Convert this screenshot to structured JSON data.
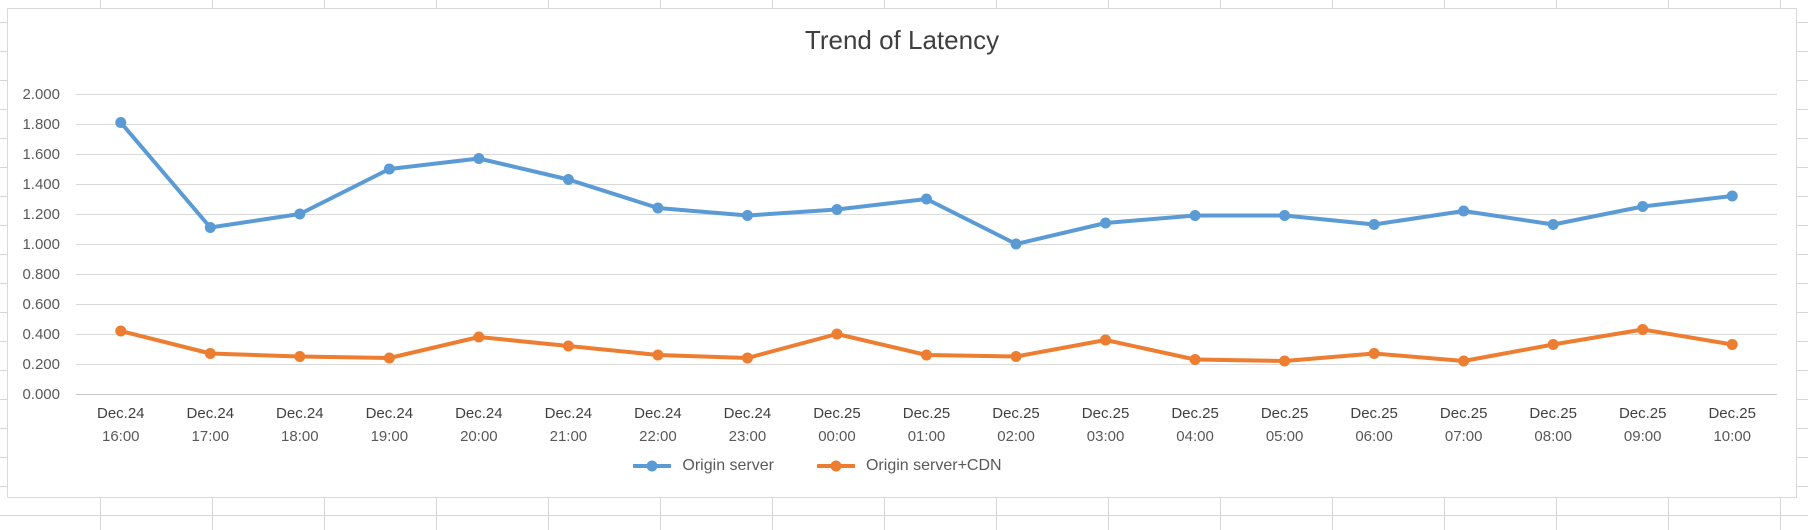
{
  "chart_data": {
    "type": "line",
    "title": "Trend of Latency",
    "categories": [
      "Dec.24 16:00",
      "Dec.24 17:00",
      "Dec.24 18:00",
      "Dec.24 19:00",
      "Dec.24 20:00",
      "Dec.24 21:00",
      "Dec.24 22:00",
      "Dec.24 23:00",
      "Dec.25 00:00",
      "Dec.25 01:00",
      "Dec.25 02:00",
      "Dec.25 03:00",
      "Dec.25 04:00",
      "Dec.25 05:00",
      "Dec.25 06:00",
      "Dec.25 07:00",
      "Dec.25 08:00",
      "Dec.25 09:00",
      "Dec.25 10:00"
    ],
    "series": [
      {
        "name": "Origin server",
        "color": "#5B9BD5",
        "values": [
          1.81,
          1.11,
          1.2,
          1.5,
          1.57,
          1.43,
          1.24,
          1.19,
          1.23,
          1.3,
          1.0,
          1.14,
          1.19,
          1.19,
          1.13,
          1.22,
          1.13,
          1.25,
          1.32
        ]
      },
      {
        "name": "Origin server+CDN",
        "color": "#ED7D31",
        "values": [
          0.42,
          0.27,
          0.25,
          0.24,
          0.38,
          0.32,
          0.26,
          0.24,
          0.4,
          0.26,
          0.25,
          0.36,
          0.23,
          0.22,
          0.27,
          0.22,
          0.33,
          0.43,
          0.33
        ]
      }
    ],
    "ylim": [
      0,
      2
    ],
    "ytick_step": 0.2,
    "ytick_decimals": 3,
    "grid": "horizontal",
    "legend_position": "bottom"
  },
  "colors": {
    "gridline": "#D9D9D9",
    "axis_line": "#C6C6C6",
    "title_text": "#3F3F3F",
    "tick_text": "#595959",
    "category_date_text": "#404040",
    "category_time_text": "#595959",
    "chart_border": "#D9D9D9",
    "worksheet_gridline": "#D6D6D6"
  }
}
